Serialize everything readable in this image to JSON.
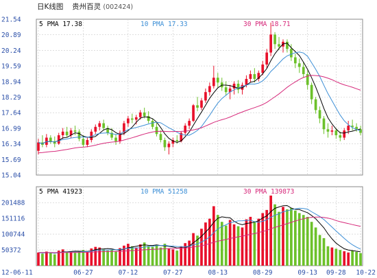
{
  "title": {
    "chart_type": "日K线图",
    "stock_name": "贵州百灵",
    "stock_code": "(002424)"
  },
  "colors": {
    "up": "#e8102a",
    "down": "#6cc12a",
    "ma5": "#000000",
    "ma10": "#3d8fd6",
    "ma30": "#d6287a",
    "grid": "#c9c9c9",
    "axis_text": "#2b4fa8"
  },
  "chart_data": [
    {
      "type": "candlestick",
      "title": "日K线图 贵州百灵(002424)",
      "legend": [
        {
          "label": "5 PMA",
          "value": "17.38"
        },
        {
          "label": "10 PMA",
          "value": "17.33"
        },
        {
          "label": "30 PMA",
          "value": "18.71"
        }
      ],
      "y_ticks": [
        "21.54",
        "20.89",
        "20.24",
        "19.59",
        "18.94",
        "18.29",
        "17.64",
        "16.99",
        "16.34",
        "15.69",
        "15.04"
      ],
      "ylim": [
        15.04,
        21.54
      ],
      "grid": true,
      "ohlc": [
        [
          16.05,
          16.55,
          15.9,
          16.4
        ],
        [
          16.4,
          16.7,
          16.2,
          16.3
        ],
        [
          16.3,
          16.75,
          16.2,
          16.6
        ],
        [
          16.6,
          16.7,
          16.35,
          16.45
        ],
        [
          16.45,
          16.65,
          16.2,
          16.35
        ],
        [
          16.35,
          16.8,
          16.3,
          16.7
        ],
        [
          16.7,
          17.0,
          16.55,
          16.85
        ],
        [
          16.85,
          17.05,
          16.6,
          16.7
        ],
        [
          16.7,
          17.0,
          16.6,
          16.9
        ],
        [
          16.9,
          17.1,
          16.7,
          16.85
        ],
        [
          16.85,
          16.95,
          16.45,
          16.55
        ],
        [
          16.55,
          16.7,
          16.2,
          16.3
        ],
        [
          16.3,
          16.6,
          16.2,
          16.5
        ],
        [
          16.5,
          16.95,
          16.4,
          16.85
        ],
        [
          16.85,
          17.15,
          16.75,
          17.05
        ],
        [
          17.05,
          17.3,
          16.9,
          17.2
        ],
        [
          17.2,
          17.35,
          16.9,
          17.0
        ],
        [
          17.0,
          17.1,
          16.7,
          16.8
        ],
        [
          16.8,
          17.0,
          16.5,
          16.6
        ],
        [
          16.6,
          16.75,
          16.3,
          16.45
        ],
        [
          16.45,
          16.9,
          16.35,
          16.8
        ],
        [
          16.8,
          17.3,
          16.7,
          17.2
        ],
        [
          17.2,
          17.5,
          17.05,
          17.4
        ],
        [
          17.4,
          17.6,
          17.2,
          17.35
        ],
        [
          17.35,
          17.55,
          17.15,
          17.45
        ],
        [
          17.45,
          17.75,
          17.35,
          17.65
        ],
        [
          17.65,
          17.85,
          17.4,
          17.5
        ],
        [
          17.5,
          17.7,
          17.2,
          17.3
        ],
        [
          17.3,
          17.4,
          16.95,
          17.05
        ],
        [
          17.05,
          17.25,
          16.65,
          16.75
        ],
        [
          16.75,
          16.9,
          16.4,
          16.5
        ],
        [
          16.5,
          16.6,
          16.05,
          16.2
        ],
        [
          16.2,
          16.45,
          15.9,
          16.35
        ],
        [
          16.35,
          16.6,
          16.2,
          16.5
        ],
        [
          16.5,
          16.7,
          16.35,
          16.45
        ],
        [
          16.45,
          16.85,
          16.4,
          16.8
        ],
        [
          16.8,
          17.2,
          16.7,
          17.1
        ],
        [
          17.1,
          17.4,
          16.95,
          17.3
        ],
        [
          17.3,
          18.0,
          17.25,
          17.95
        ],
        [
          17.95,
          18.3,
          17.7,
          17.85
        ],
        [
          17.85,
          18.25,
          17.75,
          18.15
        ],
        [
          18.15,
          18.65,
          18.05,
          18.5
        ],
        [
          18.5,
          18.9,
          18.35,
          18.75
        ],
        [
          18.75,
          19.6,
          18.65,
          19.1
        ],
        [
          19.1,
          19.3,
          18.7,
          18.9
        ],
        [
          18.9,
          19.1,
          18.55,
          18.7
        ],
        [
          18.7,
          18.95,
          18.35,
          18.5
        ],
        [
          18.5,
          18.8,
          18.2,
          18.65
        ],
        [
          18.65,
          18.95,
          18.4,
          18.85
        ],
        [
          18.85,
          19.0,
          18.45,
          18.6
        ],
        [
          18.6,
          18.9,
          18.4,
          18.8
        ],
        [
          18.8,
          19.2,
          18.7,
          19.05
        ],
        [
          19.05,
          19.4,
          18.9,
          19.25
        ],
        [
          19.25,
          19.5,
          18.9,
          19.05
        ],
        [
          19.05,
          19.4,
          18.95,
          19.3
        ],
        [
          19.3,
          19.8,
          19.2,
          19.65
        ],
        [
          19.65,
          20.3,
          19.5,
          20.15
        ],
        [
          20.15,
          21.4,
          20.0,
          20.9
        ],
        [
          20.9,
          21.0,
          20.3,
          20.5
        ],
        [
          20.5,
          20.8,
          20.25,
          20.4
        ],
        [
          20.4,
          20.7,
          20.15,
          20.6
        ],
        [
          20.6,
          20.7,
          20.15,
          20.3
        ],
        [
          20.3,
          20.5,
          19.8,
          19.95
        ],
        [
          19.95,
          20.1,
          19.5,
          19.7
        ],
        [
          19.7,
          19.9,
          19.3,
          19.55
        ],
        [
          19.55,
          19.75,
          19.1,
          19.25
        ],
        [
          19.25,
          19.4,
          18.6,
          18.8
        ],
        [
          18.8,
          18.9,
          18.0,
          18.2
        ],
        [
          18.2,
          18.3,
          17.6,
          17.75
        ],
        [
          17.75,
          17.9,
          17.2,
          17.4
        ],
        [
          17.4,
          17.5,
          16.75,
          16.95
        ],
        [
          16.95,
          17.2,
          16.6,
          16.85
        ],
        [
          16.85,
          17.1,
          16.7,
          16.9
        ],
        [
          16.9,
          17.0,
          16.55,
          16.7
        ],
        [
          16.7,
          16.85,
          16.45,
          16.6
        ],
        [
          16.6,
          17.0,
          16.5,
          16.9
        ],
        [
          16.9,
          17.3,
          16.75,
          17.1
        ],
        [
          17.1,
          17.35,
          16.9,
          17.05
        ],
        [
          17.05,
          17.2,
          16.85,
          16.95
        ],
        [
          16.95,
          17.1,
          16.7,
          16.8
        ]
      ]
    },
    {
      "type": "bar",
      "title": "",
      "legend": [
        {
          "label": "5 PMA",
          "value": "41923"
        },
        {
          "label": "10 PMA",
          "value": "51258"
        },
        {
          "label": "30 PMA",
          "value": "139873"
        }
      ],
      "y_ticks": [
        "201488",
        "151116",
        "100744",
        "50372"
      ],
      "ylim": [
        0,
        226000
      ],
      "x_ticks": [
        "12-06-11",
        "06-27",
        "07-12",
        "07-27",
        "08-13",
        "08-29",
        "09-13",
        "09-28",
        "10-22"
      ],
      "x_tick_index": [
        0,
        11,
        22,
        33,
        44,
        55,
        66,
        73,
        80
      ],
      "grid": true,
      "volume": [
        42000,
        38000,
        45000,
        40000,
        36000,
        48000,
        52000,
        44000,
        46000,
        41000,
        47000,
        50000,
        43000,
        55000,
        60000,
        58000,
        52000,
        48000,
        50000,
        45000,
        56000,
        64000,
        70000,
        62000,
        58000,
        68000,
        74000,
        63000,
        60000,
        66000,
        58000,
        70000,
        54000,
        52000,
        48000,
        62000,
        72000,
        80000,
        104000,
        96000,
        118000,
        138000,
        150000,
        190000,
        162000,
        140000,
        128000,
        146000,
        132000,
        126000,
        122000,
        148000,
        156000,
        142000,
        150000,
        168000,
        178000,
        224000,
        196000,
        172000,
        188000,
        180000,
        184000,
        176000,
        168000,
        162000,
        156000,
        140000,
        122000,
        98000,
        88000,
        62000,
        58000,
        54000,
        50000,
        46000,
        42000,
        48000,
        44000,
        40000
      ]
    }
  ]
}
